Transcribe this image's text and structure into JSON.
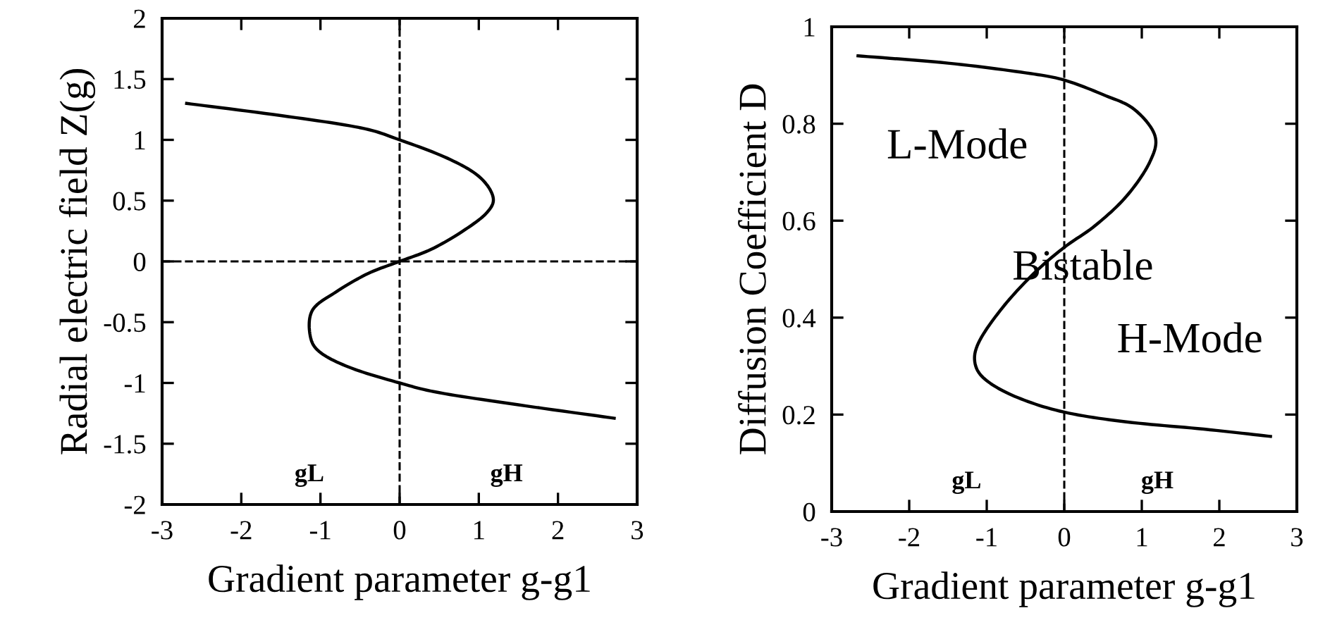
{
  "chart_data": [
    {
      "type": "line",
      "xlabel": "Gradient parameter g-g1",
      "ylabel": "Radial electric field Z(g)",
      "xlim": [
        -3,
        3
      ],
      "ylim": [
        -2,
        2
      ],
      "xticks": [
        -3,
        -2,
        -1,
        0,
        1,
        2,
        3
      ],
      "yticks": [
        -2,
        -1.5,
        -1,
        -0.5,
        0,
        0.5,
        1,
        1.5,
        2
      ],
      "grid": false,
      "legend": false,
      "line_style": "solid",
      "marker": "none",
      "series": [
        {
          "color": "#000000",
          "x": [
            -2.69,
            -1.5,
            -0.5,
            0,
            0.6,
            1.0,
            1.18,
            1.1,
            0.8,
            0.4,
            0,
            -0.4,
            -0.8,
            -1.1,
            -1.13,
            -1.0,
            -0.6,
            0,
            0.5,
            1.5,
            2.71
          ],
          "values": [
            1.3,
            1.2,
            1.1,
            1.0,
            0.85,
            0.7,
            0.53,
            0.4,
            0.25,
            0.1,
            0,
            -0.1,
            -0.25,
            -0.4,
            -0.61,
            -0.75,
            -0.88,
            -1.0,
            -1.08,
            -1.18,
            -1.29
          ]
        }
      ],
      "ref_lines": [
        {
          "axis": "x",
          "value": 0,
          "line_style": "dashed",
          "color": "#000000"
        },
        {
          "axis": "y",
          "value": 0,
          "line_style": "dashed",
          "color": "#000000"
        }
      ],
      "annotations": [
        "gL",
        "gH"
      ]
    },
    {
      "type": "line",
      "xlabel": "Gradient parameter g-g1",
      "ylabel": "Diffusion Coefficient D",
      "xlim": [
        -3,
        3
      ],
      "ylim": [
        0,
        1
      ],
      "xticks": [
        -3,
        -2,
        -1,
        0,
        1,
        2,
        3
      ],
      "yticks": [
        0,
        0.2,
        0.4,
        0.6,
        0.8,
        1
      ],
      "grid": false,
      "legend": false,
      "line_style": "solid",
      "marker": "none",
      "series": [
        {
          "color": "#000000",
          "x": [
            -2.66,
            -1.5,
            -0.5,
            0,
            0.5,
            0.9,
            1.17,
            1.1,
            0.8,
            0.4,
            0,
            -0.4,
            -0.8,
            -1.1,
            -1.15,
            -1.0,
            -0.6,
            0,
            0.8,
            1.8,
            2.66
          ],
          "values": [
            0.94,
            0.925,
            0.905,
            0.89,
            0.86,
            0.83,
            0.775,
            0.72,
            0.65,
            0.59,
            0.545,
            0.49,
            0.42,
            0.35,
            0.305,
            0.27,
            0.235,
            0.205,
            0.185,
            0.17,
            0.155
          ]
        }
      ],
      "ref_lines": [
        {
          "axis": "x",
          "value": 0,
          "line_style": "dashed",
          "color": "#000000"
        }
      ],
      "annotations": [
        "gL",
        "gH",
        "L-Mode",
        "Bistable",
        "H-Mode"
      ]
    }
  ]
}
